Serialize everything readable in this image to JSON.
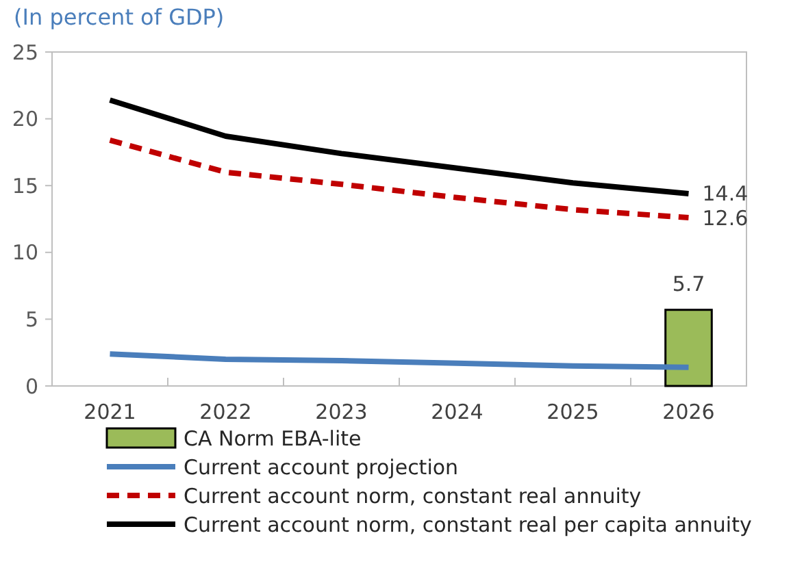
{
  "chart_data": {
    "type": "line",
    "subtitle": "(In percent of GDP)",
    "categories": [
      "2021",
      "2022",
      "2023",
      "2024",
      "2025",
      "2026"
    ],
    "ylim": [
      0,
      25
    ],
    "yticks": [
      0,
      5,
      10,
      15,
      20,
      25
    ],
    "grid": false,
    "legend": "bottom",
    "marker": "none",
    "series": [
      {
        "name": "CA Norm EBA-lite",
        "type": "bar",
        "color": "#9bbb59",
        "values": [
          null,
          null,
          null,
          null,
          null,
          5.7
        ],
        "value_labels": [
          null,
          null,
          null,
          null,
          null,
          "5.7"
        ]
      },
      {
        "name": "Current account projection",
        "color": "#4a7ebb",
        "line_style": "solid",
        "values": [
          2.4,
          2.0,
          1.9,
          1.7,
          1.5,
          1.4
        ]
      },
      {
        "name": "Current account norm, constant real annuity",
        "color": "#c00000",
        "line_style": "dashed",
        "values": [
          18.4,
          16.0,
          15.1,
          14.1,
          13.2,
          12.6
        ],
        "value_labels": [
          null,
          null,
          null,
          null,
          null,
          "12.6"
        ]
      },
      {
        "name": "Current account norm, constant real per capita annuity",
        "color": "#000000",
        "line_style": "solid",
        "values": [
          21.4,
          18.7,
          17.4,
          16.3,
          15.2,
          14.4
        ],
        "value_labels": [
          null,
          null,
          null,
          null,
          null,
          "14.4"
        ]
      }
    ]
  }
}
